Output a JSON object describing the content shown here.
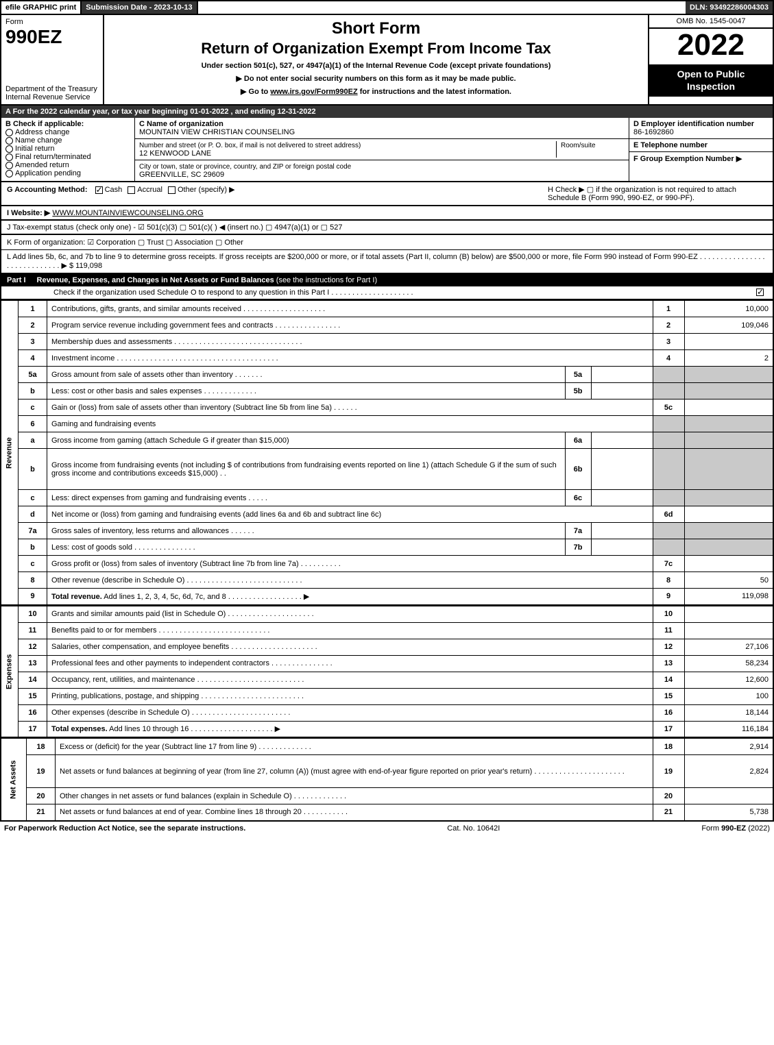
{
  "topbar": {
    "efile": "efile GRAPHIC print",
    "submission": "Submission Date - 2023-10-13",
    "dln": "DLN: 93492286004303"
  },
  "header": {
    "form_label": "Form",
    "form_number": "990EZ",
    "dept": "Department of the Treasury\nInternal Revenue Service",
    "title1": "Short Form",
    "title2": "Return of Organization Exempt From Income Tax",
    "undersection": "Under section 501(c), 527, or 4947(a)(1) of the Internal Revenue Code (except private foundations)",
    "warn": "▶ Do not enter social security numbers on this form as it may be made public.",
    "goto_pre": "▶ Go to ",
    "goto_link": "www.irs.gov/Form990EZ",
    "goto_post": " for instructions and the latest information.",
    "omb": "OMB No. 1545-0047",
    "year": "2022",
    "inspection": "Open to Public Inspection"
  },
  "line_a": "A  For the 2022 calendar year, or tax year beginning 01-01-2022 , and ending 12-31-2022",
  "box_b": {
    "title": "B  Check if applicable:",
    "opts": [
      "Address change",
      "Name change",
      "Initial return",
      "Final return/terminated",
      "Amended return",
      "Application pending"
    ]
  },
  "box_c": {
    "name_label": "C Name of organization",
    "name": "MOUNTAIN VIEW CHRISTIAN COUNSELING",
    "street_label": "Number and street (or P. O. box, if mail is not delivered to street address)",
    "room_label": "Room/suite",
    "street": "12 KENWOOD LANE",
    "city_label": "City or town, state or province, country, and ZIP or foreign postal code",
    "city": "GREENVILLE, SC  29609"
  },
  "box_d": {
    "label": "D Employer identification number",
    "value": "86-1692860"
  },
  "box_e": {
    "label": "E Telephone number",
    "value": ""
  },
  "box_f": {
    "label": "F Group Exemption Number   ▶",
    "value": ""
  },
  "box_g": {
    "label": "G Accounting Method:",
    "opts": [
      "Cash",
      "Accrual",
      "Other (specify) ▶"
    ],
    "checked": 0
  },
  "box_h": "H   Check ▶  ▢  if the organization is not required to attach Schedule B (Form 990, 990-EZ, or 990-PF).",
  "box_i": {
    "label": "I Website: ▶",
    "value": "WWW.MOUNTAINVIEWCOUNSELING.ORG"
  },
  "box_j": "J Tax-exempt status (check only one) -  ☑ 501(c)(3)  ▢ 501(c)(  ) ◀ (insert no.)  ▢ 4947(a)(1) or  ▢ 527",
  "box_k": "K Form of organization:   ☑ Corporation   ▢ Trust   ▢ Association   ▢ Other",
  "box_l": {
    "text": "L Add lines 5b, 6c, and 7b to line 9 to determine gross receipts. If gross receipts are $200,000 or more, or if total assets (Part II, column (B) below) are $500,000 or more, file Form 990 instead of Form 990-EZ  .  .  .  .  .  .  .  .  .  .  .  .  .  .  .  .  .  .  .  .  .  .  .  .  .  .  .  .  .  ▶ $",
    "amount": "119,098"
  },
  "part1": {
    "label": "Part I",
    "title": "Revenue, Expenses, and Changes in Net Assets or Fund Balances",
    "sub": "(see the instructions for Part I)",
    "schedO": "Check if the organization used Schedule O to respond to any question in this Part I  .  .  .  .  .  .  .  .  .  .  .  .  .  .  .  .  .  .  .  .",
    "schedO_checked": true
  },
  "sections": {
    "revenue_label": "Revenue",
    "expenses_label": "Expenses",
    "netassets_label": "Net Assets"
  },
  "lines": [
    {
      "no": "1",
      "text": "Contributions, gifts, grants, and similar amounts received  .  .  .  .  .  .  .  .  .  .  .  .  .  .  .  .  .  .  .  .",
      "ref": "1",
      "amt": "10,000"
    },
    {
      "no": "2",
      "text": "Program service revenue including government fees and contracts  .  .  .  .  .  .  .  .  .  .  .  .  .  .  .  .",
      "ref": "2",
      "amt": "109,046"
    },
    {
      "no": "3",
      "text": "Membership dues and assessments  .  .  .  .  .  .  .  .  .  .  .  .  .  .  .  .  .  .  .  .  .  .  .  .  .  .  .  .  .  .  .",
      "ref": "3",
      "amt": ""
    },
    {
      "no": "4",
      "text": "Investment income  .  .  .  .  .  .  .  .  .  .  .  .  .  .  .  .  .  .  .  .  .  .  .  .  .  .  .  .  .  .  .  .  .  .  .  .  .  .  .",
      "ref": "4",
      "amt": "2"
    },
    {
      "no": "5a",
      "text": "Gross amount from sale of assets other than inventory  .  .  .  .  .  .  .",
      "sub": "5a",
      "shaded": true
    },
    {
      "no": "b",
      "text": "Less: cost or other basis and sales expenses  .  .  .  .  .  .  .  .  .  .  .  .  .",
      "sub": "5b",
      "shaded": true
    },
    {
      "no": "c",
      "text": "Gain or (loss) from sale of assets other than inventory (Subtract line 5b from line 5a)  .  .  .  .  .  .",
      "ref": "5c",
      "amt": ""
    },
    {
      "no": "6",
      "text": "Gaming and fundraising events",
      "shaded": true,
      "noref": true
    },
    {
      "no": "a",
      "text": "Gross income from gaming (attach Schedule G if greater than $15,000)",
      "sub": "6a",
      "shaded": true
    },
    {
      "no": "b",
      "text": "Gross income from fundraising events (not including $                   of contributions from fundraising events reported on line 1) (attach Schedule G if the sum of such gross income and contributions exceeds $15,000)  .  .",
      "sub": "6b",
      "shaded": true,
      "tall": true
    },
    {
      "no": "c",
      "text": "Less: direct expenses from gaming and fundraising events  .  .  .  .  .",
      "sub": "6c",
      "shaded": true
    },
    {
      "no": "d",
      "text": "Net income or (loss) from gaming and fundraising events (add lines 6a and 6b and subtract line 6c)",
      "ref": "6d",
      "amt": ""
    },
    {
      "no": "7a",
      "text": "Gross sales of inventory, less returns and allowances  .  .  .  .  .  .",
      "sub": "7a",
      "shaded": true
    },
    {
      "no": "b",
      "text": "Less: cost of goods sold               .  .  .  .  .  .  .  .  .  .  .  .  .  .  .",
      "sub": "7b",
      "shaded": true
    },
    {
      "no": "c",
      "text": "Gross profit or (loss) from sales of inventory (Subtract line 7b from line 7a)  .  .  .  .  .  .  .  .  .  .",
      "ref": "7c",
      "amt": ""
    },
    {
      "no": "8",
      "text": "Other revenue (describe in Schedule O)  .  .  .  .  .  .  .  .  .  .  .  .  .  .  .  .  .  .  .  .  .  .  .  .  .  .  .  .",
      "ref": "8",
      "amt": "50"
    },
    {
      "no": "9",
      "text": "Total revenue. Add lines 1, 2, 3, 4, 5c, 6d, 7c, and 8  .  .  .  .  .  .  .  .  .  .  .  .  .  .  .  .  .  .  ▶",
      "ref": "9",
      "amt": "119,098",
      "bold": true
    }
  ],
  "exp_lines": [
    {
      "no": "10",
      "text": "Grants and similar amounts paid (list in Schedule O)  .  .  .  .  .  .  .  .  .  .  .  .  .  .  .  .  .  .  .  .  .",
      "ref": "10",
      "amt": ""
    },
    {
      "no": "11",
      "text": "Benefits paid to or for members           .  .  .  .  .  .  .  .  .  .  .  .  .  .  .  .  .  .  .  .  .  .  .  .  .  .  .",
      "ref": "11",
      "amt": ""
    },
    {
      "no": "12",
      "text": "Salaries, other compensation, and employee benefits  .  .  .  .  .  .  .  .  .  .  .  .  .  .  .  .  .  .  .  .  .",
      "ref": "12",
      "amt": "27,106"
    },
    {
      "no": "13",
      "text": "Professional fees and other payments to independent contractors  .  .  .  .  .  .  .  .  .  .  .  .  .  .  .",
      "ref": "13",
      "amt": "58,234"
    },
    {
      "no": "14",
      "text": "Occupancy, rent, utilities, and maintenance  .  .  .  .  .  .  .  .  .  .  .  .  .  .  .  .  .  .  .  .  .  .  .  .  .  .",
      "ref": "14",
      "amt": "12,600"
    },
    {
      "no": "15",
      "text": "Printing, publications, postage, and shipping  .  .  .  .  .  .  .  .  .  .  .  .  .  .  .  .  .  .  .  .  .  .  .  .  .",
      "ref": "15",
      "amt": "100"
    },
    {
      "no": "16",
      "text": "Other expenses (describe in Schedule O)        .  .  .  .  .  .  .  .  .  .  .  .  .  .  .  .  .  .  .  .  .  .  .  .",
      "ref": "16",
      "amt": "18,144"
    },
    {
      "no": "17",
      "text": "Total expenses. Add lines 10 through 16        .  .  .  .  .  .  .  .  .  .  .  .  .  .  .  .  .  .  .  .  ▶",
      "ref": "17",
      "amt": "116,184",
      "bold": true
    }
  ],
  "net_lines": [
    {
      "no": "18",
      "text": "Excess or (deficit) for the year (Subtract line 17 from line 9)           .  .  .  .  .  .  .  .  .  .  .  .  .",
      "ref": "18",
      "amt": "2,914"
    },
    {
      "no": "19",
      "text": "Net assets or fund balances at beginning of year (from line 27, column (A)) (must agree with end-of-year figure reported on prior year's return)  .  .  .  .  .  .  .  .  .  .  .  .  .  .  .  .  .  .  .  .  .  .",
      "ref": "19",
      "amt": "2,824",
      "tall": true
    },
    {
      "no": "20",
      "text": "Other changes in net assets or fund balances (explain in Schedule O)  .  .  .  .  .  .  .  .  .  .  .  .  .",
      "ref": "20",
      "amt": ""
    },
    {
      "no": "21",
      "text": "Net assets or fund balances at end of year. Combine lines 18 through 20  .  .  .  .  .  .  .  .  .  .  .",
      "ref": "21",
      "amt": "5,738"
    }
  ],
  "footer": {
    "left": "For Paperwork Reduction Act Notice, see the separate instructions.",
    "center": "Cat. No. 10642I",
    "right_pre": "Form ",
    "right_bold": "990-EZ",
    "right_post": " (2022)"
  }
}
